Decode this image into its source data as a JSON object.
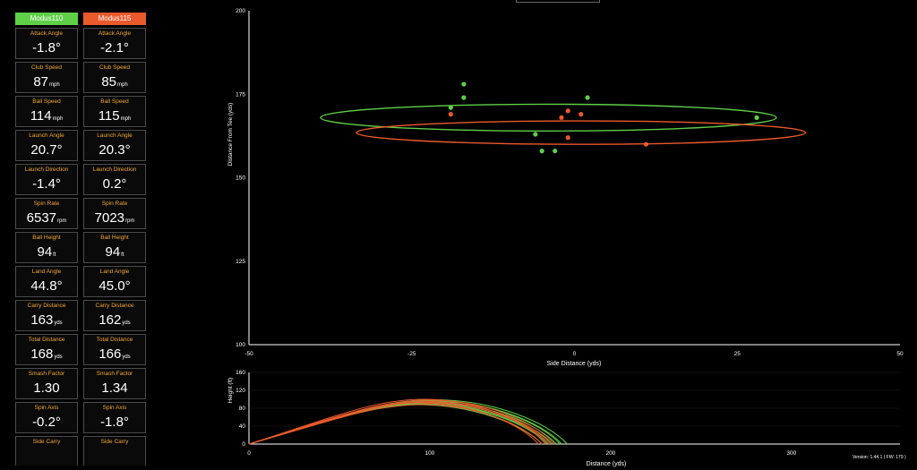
{
  "panel": {
    "clubs": [
      {
        "name": "Modus110",
        "color": "#5fcf48"
      },
      {
        "name": "Modus115",
        "color": "#ea5a2d"
      }
    ],
    "metrics": [
      {
        "label": "Attack Angle",
        "unit": "°",
        "unit_small": false,
        "values": [
          "-1.8",
          "-2.1"
        ]
      },
      {
        "label": "Club Speed",
        "unit": "mph",
        "unit_small": true,
        "values": [
          "87",
          "85"
        ]
      },
      {
        "label": "Ball Speed",
        "unit": "mph",
        "unit_small": true,
        "values": [
          "114",
          "115"
        ]
      },
      {
        "label": "Launch Angle",
        "unit": "°",
        "unit_small": false,
        "values": [
          "20.7",
          "20.3"
        ]
      },
      {
        "label": "Launch Direction",
        "unit": "°",
        "unit_small": false,
        "values": [
          "-1.4",
          "0.2"
        ]
      },
      {
        "label": "Spin Rate",
        "unit": "rpm",
        "unit_small": true,
        "values": [
          "6537",
          "7023"
        ]
      },
      {
        "label": "Ball Height",
        "unit": "ft",
        "unit_small": true,
        "values": [
          "94",
          "94"
        ]
      },
      {
        "label": "Land Angle",
        "unit": "°",
        "unit_small": false,
        "values": [
          "44.8",
          "45.0"
        ]
      },
      {
        "label": "Carry Distance",
        "unit": "yds",
        "unit_small": true,
        "values": [
          "163",
          "162"
        ]
      },
      {
        "label": "Total Distance",
        "unit": "yds",
        "unit_small": true,
        "values": [
          "168",
          "166"
        ]
      },
      {
        "label": "Smash Factor",
        "unit": "",
        "unit_small": false,
        "values": [
          "1.30",
          "1.34"
        ]
      },
      {
        "label": "Spin Axis",
        "unit": "°",
        "unit_small": false,
        "values": [
          "-0.2",
          "-1.8"
        ]
      },
      {
        "label": "Side Carry",
        "unit": "",
        "unit_small": false,
        "values": [
          "",
          ""
        ]
      }
    ]
  },
  "legend_colors": [
    "#ea5a2d",
    "#5fcf48",
    "#3c6ed2",
    "#e8a33c"
  ],
  "version": "Version: 1.44.1 ( FW: 179 )",
  "chart_data": [
    {
      "type": "scatter",
      "xlabel": "Side Distance (yds)",
      "ylabel": "Distance From Tee (yds)",
      "xlim": [
        -50,
        50
      ],
      "ylim": [
        100,
        200
      ],
      "xticks": [
        -50,
        -25,
        0,
        25,
        50
      ],
      "yticks": [
        100,
        125,
        150,
        175,
        200
      ],
      "series": [
        {
          "color": "#5fcf48",
          "points": [
            [
              -17,
              178
            ],
            [
              -17,
              174
            ],
            [
              -19,
              171
            ],
            [
              -6,
              163
            ],
            [
              2,
              174
            ],
            [
              28,
              168
            ],
            [
              -5,
              158
            ],
            [
              -3,
              158
            ]
          ],
          "ellipse": {
            "cx": -4,
            "cy": 168,
            "rx": 35,
            "ry": 4
          }
        },
        {
          "color": "#ea5a2d",
          "points": [
            [
              -19,
              169
            ],
            [
              -1,
              170
            ],
            [
              1,
              169
            ],
            [
              -2,
              168
            ],
            [
              -1,
              162
            ],
            [
              11,
              160
            ]
          ],
          "ellipse": {
            "cx": 1,
            "cy": 163.5,
            "rx": 34.5,
            "ry": 3.5
          }
        }
      ]
    },
    {
      "type": "line",
      "xlabel": "Distance (yds)",
      "ylabel": "Height (ft)",
      "xlim": [
        0,
        360
      ],
      "ylim": [
        0,
        160
      ],
      "xticks": [
        0,
        100,
        200,
        300
      ],
      "yticks": [
        0,
        40,
        80,
        120,
        160
      ],
      "series": [
        {
          "color": "#5fcf48",
          "trajectories": [
            {
              "apex": [
                98,
                94
              ],
              "carry": 170
            },
            {
              "apex": [
                100,
                97
              ],
              "carry": 173
            },
            {
              "apex": [
                95,
                90
              ],
              "carry": 165
            },
            {
              "apex": [
                102,
                99
              ],
              "carry": 176
            },
            {
              "apex": [
                97,
                92
              ],
              "carry": 168
            },
            {
              "apex": [
                93,
                88
              ],
              "carry": 162
            },
            {
              "apex": [
                101,
                96
              ],
              "carry": 172
            },
            {
              "apex": [
                96,
                91
              ],
              "carry": 166
            }
          ]
        },
        {
          "color": "#ea5a2d",
          "trajectories": [
            {
              "apex": [
                97,
                100
              ],
              "carry": 164
            },
            {
              "apex": [
                99,
                95
              ],
              "carry": 167
            },
            {
              "apex": [
                94,
                92
              ],
              "carry": 160
            },
            {
              "apex": [
                100,
                98
              ],
              "carry": 169
            },
            {
              "apex": [
                96,
                88
              ],
              "carry": 162
            },
            {
              "apex": [
                98,
                93
              ],
              "carry": 166
            }
          ]
        }
      ]
    }
  ]
}
